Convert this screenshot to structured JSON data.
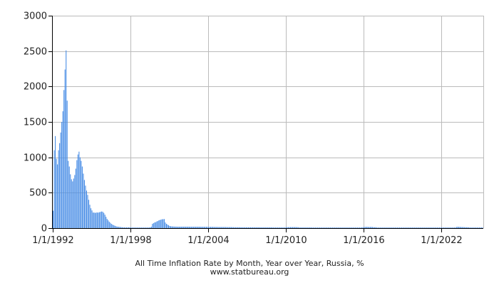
{
  "chart_data": {
    "type": "bar",
    "title": "All Time Inflation Rate by Month, Year over Year, Russia, %",
    "source": "www.statbureau.org",
    "xlabel": "",
    "ylabel": "",
    "xlim": [
      "1992-01-01",
      "2025-04-01"
    ],
    "ylim": [
      0,
      3000
    ],
    "y_ticks": [
      0,
      500,
      1000,
      1500,
      2000,
      2500,
      3000
    ],
    "x_ticks": [
      "1/1/1992",
      "1/1/1998",
      "1/1/2004",
      "1/1/2010",
      "1/1/2016",
      "1/1/2022"
    ],
    "x_tick_dates": [
      "1992-01-01",
      "1998-01-01",
      "2004-01-01",
      "2010-01-01",
      "2016-01-01",
      "2022-01-01"
    ],
    "grid": true,
    "legend": "none",
    "colors": {
      "bar": "#4a8ee6",
      "grid": "#bbbbbb",
      "axis": "#000000"
    },
    "series": [
      {
        "start": "1992-01",
        "values": [
          245,
          1100,
          1300,
          980,
          900,
          1100,
          1200,
          1350,
          1500,
          1650,
          1950,
          2240,
          2510,
          1800,
          950,
          870,
          760,
          690,
          660,
          700,
          750,
          840,
          960,
          1040,
          1080,
          1000,
          950,
          870,
          770,
          680,
          600,
          530,
          470,
          400,
          330,
          280,
          250,
          220,
          220,
          215,
          220,
          220,
          220,
          225,
          230,
          235,
          230,
          215,
          190,
          160,
          130,
          110,
          90,
          75,
          60,
          50,
          42,
          35,
          28,
          22,
          20,
          18,
          16,
          14,
          12,
          11,
          10,
          10,
          10,
          10,
          11,
          11,
          6,
          6,
          7,
          7,
          7,
          7,
          8,
          7,
          6,
          6,
          6,
          6,
          6,
          7,
          8,
          8,
          8,
          9,
          10,
          20,
          60,
          70,
          80,
          84,
          94,
          100,
          110,
          115,
          120,
          125,
          126,
          128,
          80,
          60,
          50,
          40,
          30,
          26,
          24,
          23,
          22,
          21,
          21,
          20,
          20,
          20,
          20,
          20,
          20,
          20,
          20,
          20,
          20,
          20,
          20,
          19,
          19,
          19,
          19,
          19,
          19,
          19,
          19,
          19,
          19,
          18,
          18,
          18,
          18,
          18,
          18,
          18,
          17,
          17,
          17,
          17,
          17,
          16,
          16,
          16,
          16,
          15,
          15,
          15,
          15,
          15,
          15,
          15,
          15,
          14,
          14,
          14,
          14,
          14,
          13,
          13,
          12,
          12,
          12,
          12,
          12,
          12,
          11,
          11,
          11,
          11,
          11,
          11,
          11,
          11,
          11,
          11,
          11,
          11,
          11,
          11,
          11,
          11,
          11,
          11,
          10,
          10,
          10,
          10,
          10,
          10,
          10,
          10,
          10,
          10,
          10,
          10,
          9,
          9,
          9,
          9,
          9,
          9,
          9,
          9,
          9,
          9,
          9,
          9,
          13,
          13,
          13,
          13,
          14,
          14,
          14,
          14,
          14,
          14,
          13,
          13,
          9,
          9,
          9,
          9,
          9,
          9,
          9,
          9,
          9,
          9,
          9,
          9,
          8,
          8,
          8,
          8,
          8,
          8,
          8,
          8,
          8,
          8,
          8,
          8,
          7,
          7,
          7,
          7,
          7,
          7,
          7,
          7,
          7,
          7,
          7,
          7,
          4,
          4,
          4,
          4,
          4,
          4,
          6,
          6,
          6,
          6,
          6,
          6,
          7,
          7,
          7,
          7,
          7,
          7,
          7,
          8,
          8,
          8,
          9,
          11,
          15,
          16,
          17,
          17,
          16,
          15,
          16,
          16,
          15,
          12,
          12,
          13,
          7,
          7,
          7,
          7,
          7,
          7,
          7,
          7,
          6,
          6,
          6,
          5,
          5,
          5,
          4,
          4,
          4,
          4,
          4,
          3,
          3,
          3,
          3,
          3,
          2,
          2,
          2,
          2,
          2,
          2,
          2,
          3,
          3,
          4,
          4,
          4,
          5,
          5,
          5,
          5,
          5,
          5,
          5,
          5,
          4,
          4,
          4,
          3,
          2,
          2,
          3,
          3,
          3,
          3,
          3,
          4,
          4,
          4,
          4,
          5,
          5,
          6,
          6,
          6,
          6,
          6,
          6,
          7,
          7,
          7,
          8,
          8,
          9,
          9,
          17,
          18,
          17,
          16,
          15,
          14,
          14,
          13,
          12,
          12,
          12,
          11,
          4,
          3,
          3,
          3,
          4,
          5,
          6,
          7,
          7,
          7,
          7,
          8,
          8,
          8,
          8,
          9,
          9,
          9,
          9,
          9,
          9,
          10,
          10,
          10,
          10,
          10
        ]
      }
    ]
  }
}
